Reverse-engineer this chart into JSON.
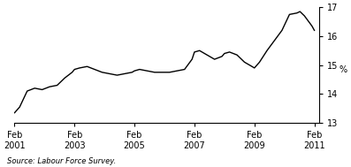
{
  "title": "",
  "ylabel": "%",
  "source": "Source: Labour Force Survey.",
  "xlim_start": 2001.08,
  "xlim_end": 2011.25,
  "ylim": [
    13,
    17
  ],
  "yticks": [
    13,
    14,
    15,
    16,
    17
  ],
  "xtick_positions": [
    2001.08,
    2003.08,
    2005.08,
    2007.08,
    2009.08,
    2011.08
  ],
  "xtick_labels": [
    "Feb\n2001",
    "Feb\n2003",
    "Feb\n2005",
    "Feb\n2007",
    "Feb\n2009",
    "Feb\n2011"
  ],
  "line_color": "#000000",
  "line_width": 1.0,
  "data": [
    [
      2001.08,
      13.35
    ],
    [
      2001.25,
      13.55
    ],
    [
      2001.5,
      14.1
    ],
    [
      2001.75,
      14.2
    ],
    [
      2002.0,
      14.15
    ],
    [
      2002.25,
      14.25
    ],
    [
      2002.5,
      14.3
    ],
    [
      2002.75,
      14.55
    ],
    [
      2003.0,
      14.75
    ],
    [
      2003.08,
      14.85
    ],
    [
      2003.25,
      14.9
    ],
    [
      2003.5,
      14.95
    ],
    [
      2003.75,
      14.85
    ],
    [
      2004.0,
      14.75
    ],
    [
      2004.25,
      14.7
    ],
    [
      2004.5,
      14.65
    ],
    [
      2004.75,
      14.7
    ],
    [
      2005.0,
      14.75
    ],
    [
      2005.08,
      14.8
    ],
    [
      2005.25,
      14.85
    ],
    [
      2005.5,
      14.8
    ],
    [
      2005.75,
      14.75
    ],
    [
      2006.0,
      14.75
    ],
    [
      2006.25,
      14.75
    ],
    [
      2006.5,
      14.8
    ],
    [
      2006.75,
      14.85
    ],
    [
      2007.0,
      15.2
    ],
    [
      2007.08,
      15.45
    ],
    [
      2007.25,
      15.5
    ],
    [
      2007.5,
      15.35
    ],
    [
      2007.75,
      15.2
    ],
    [
      2008.0,
      15.3
    ],
    [
      2008.08,
      15.4
    ],
    [
      2008.25,
      15.45
    ],
    [
      2008.5,
      15.35
    ],
    [
      2008.75,
      15.1
    ],
    [
      2009.0,
      14.95
    ],
    [
      2009.08,
      14.9
    ],
    [
      2009.25,
      15.1
    ],
    [
      2009.5,
      15.5
    ],
    [
      2009.75,
      15.85
    ],
    [
      2010.0,
      16.2
    ],
    [
      2010.25,
      16.75
    ],
    [
      2010.5,
      16.8
    ],
    [
      2010.6,
      16.85
    ],
    [
      2010.75,
      16.7
    ],
    [
      2011.0,
      16.35
    ],
    [
      2011.08,
      16.2
    ]
  ],
  "background_color": "#ffffff",
  "spine_color": "#000000"
}
